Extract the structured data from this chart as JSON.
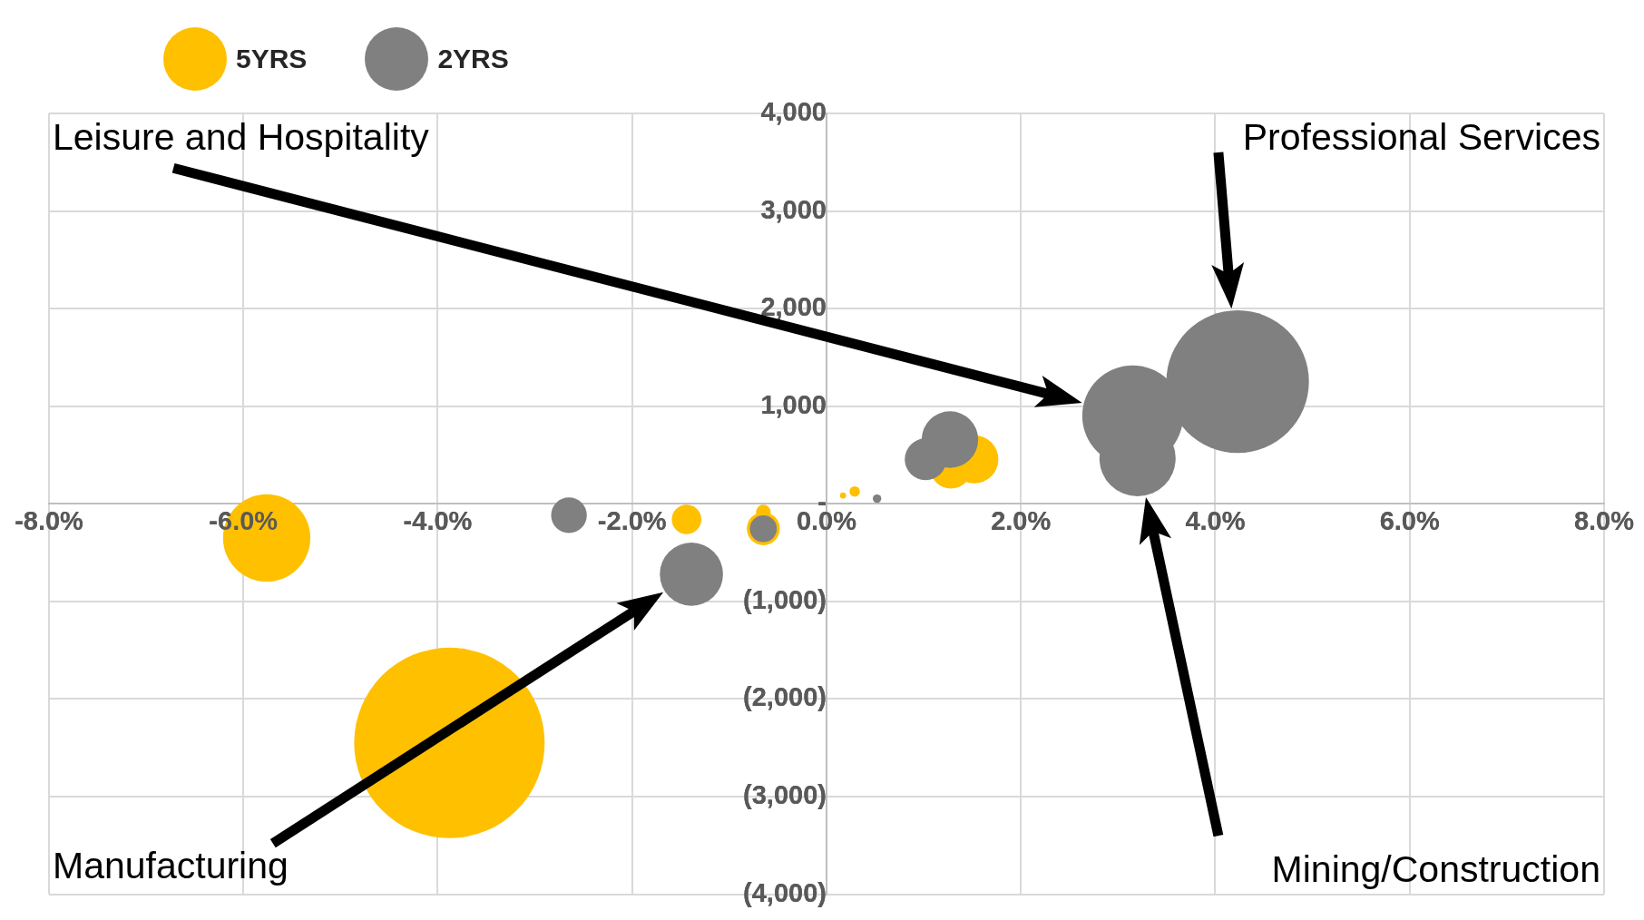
{
  "chart_data": {
    "type": "bubble",
    "legend": "top left",
    "grid": true,
    "xlim": [
      -8,
      8
    ],
    "xticks": [
      {
        "value": -8,
        "label": "-8.0%"
      },
      {
        "value": -6,
        "label": "-6.0%"
      },
      {
        "value": -4,
        "label": "-4.0%"
      },
      {
        "value": -2,
        "label": "-2.0%"
      },
      {
        "value": 0,
        "label": "0.0%"
      },
      {
        "value": 2,
        "label": "2.0%"
      },
      {
        "value": 4,
        "label": "4.0%"
      },
      {
        "value": 6,
        "label": "6.0%"
      },
      {
        "value": 8,
        "label": "8.0%"
      }
    ],
    "ylim": [
      -4000,
      4000
    ],
    "yticks": [
      {
        "value": -4000,
        "label": "(4,000)"
      },
      {
        "value": -3000,
        "label": "(3,000)"
      },
      {
        "value": -2000,
        "label": "(2,000)"
      },
      {
        "value": -1000,
        "label": "(1,000)"
      },
      {
        "value": 0,
        "label": "-"
      },
      {
        "value": 1000,
        "label": "1,000"
      },
      {
        "value": 2000,
        "label": "2,000"
      },
      {
        "value": 3000,
        "label": "3,000"
      },
      {
        "value": 4000,
        "label": "4,000"
      }
    ],
    "series": [
      {
        "name": "5YRS",
        "color": "#ffc000",
        "x": [
          -5.76,
          -3.88,
          -1.44,
          -0.65,
          -0.65,
          0.17,
          0.29,
          1.28,
          1.52
        ],
        "values": [
          -350,
          -2450,
          -160,
          -85,
          -255,
          85,
          127,
          370,
          456
        ],
        "sizes": [
          0.21,
          1,
          0.024,
          0.006,
          0.03,
          0.001,
          0.003,
          0.048,
          0.064
        ]
      },
      {
        "name": "2YRS",
        "color": "#808080",
        "x": [
          -2.65,
          -0.65,
          -1.39,
          0.52,
          1.02,
          1.27,
          3.15,
          3.2,
          4.23
        ],
        "values": [
          -117,
          -255,
          -721,
          53,
          456,
          658,
          902,
          467,
          1252
        ],
        "sizes": [
          0.035,
          0.02,
          0.11,
          0.002,
          0.048,
          0.088,
          0.28,
          0.16,
          0.56
        ]
      }
    ],
    "annotations": [
      "Leisure and Hospitality",
      "Professional Services",
      "Manufacturing",
      "Mining/Construction"
    ]
  }
}
